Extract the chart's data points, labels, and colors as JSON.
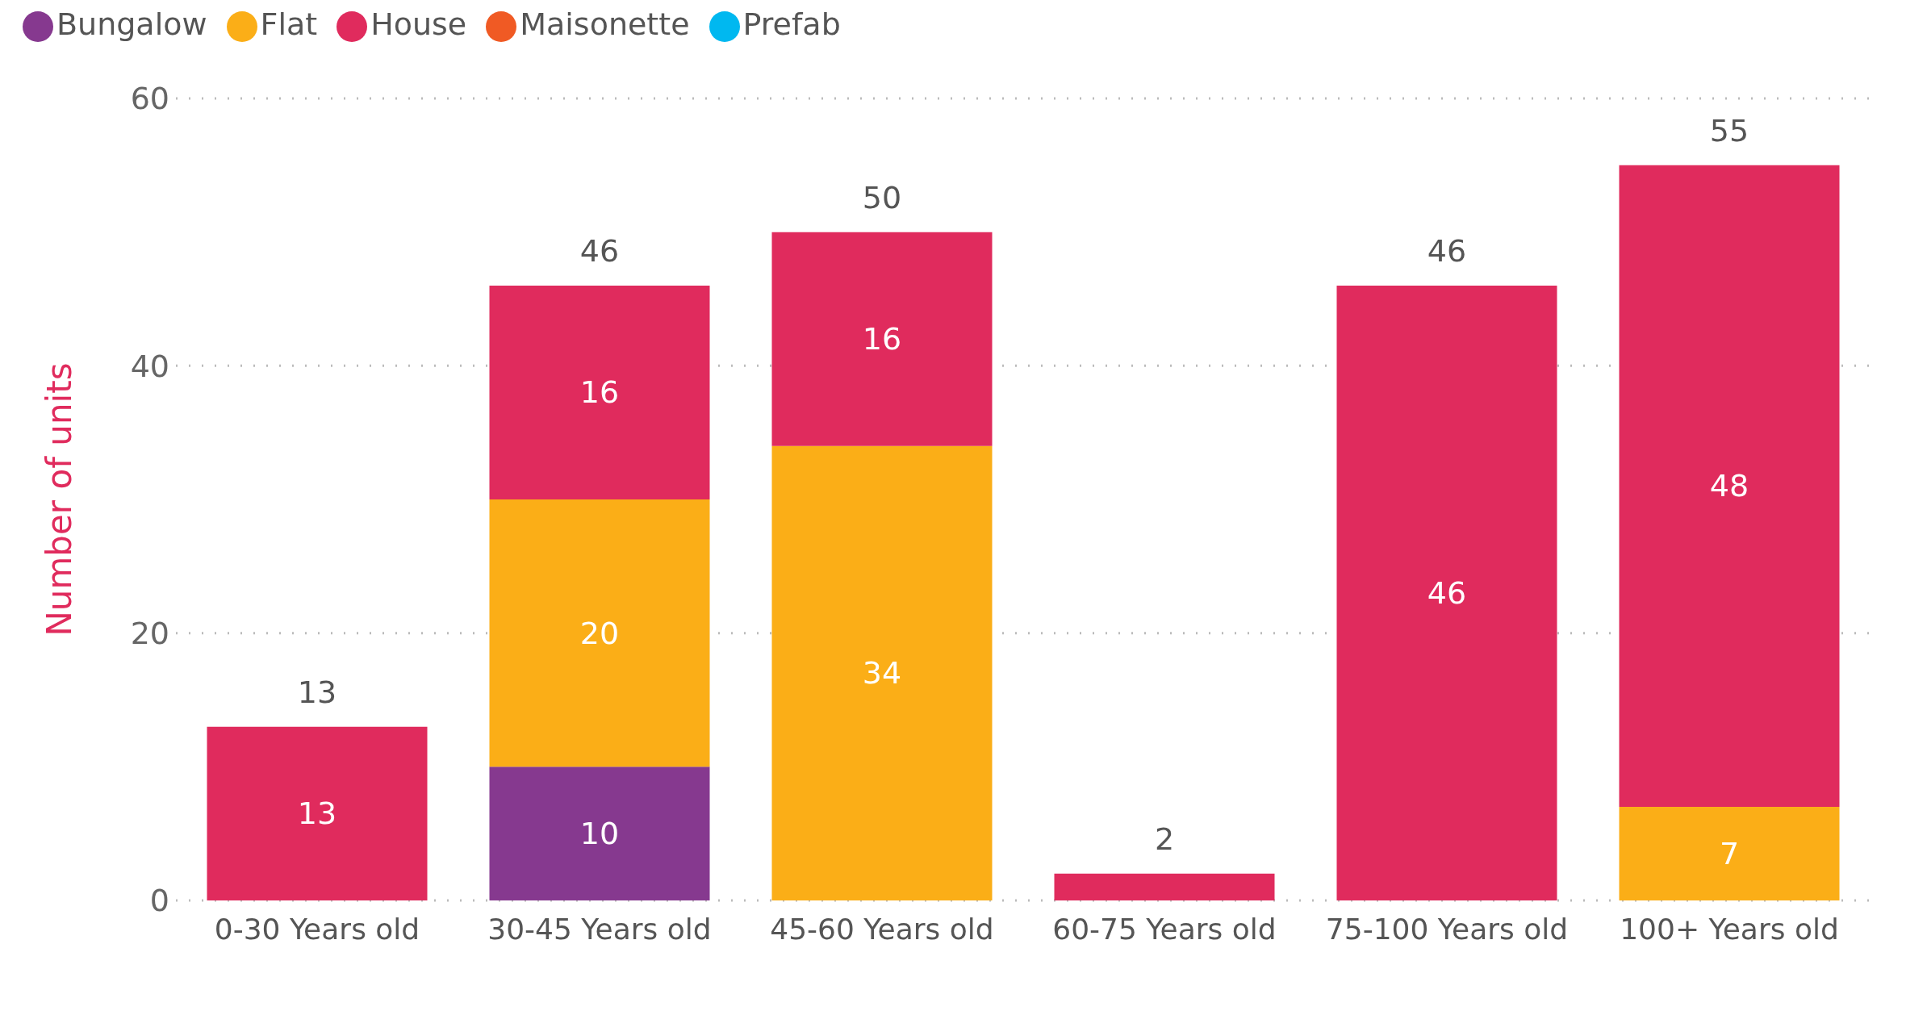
{
  "chart_data": {
    "type": "bar",
    "stacked": true,
    "ylabel": "Number of units",
    "categories": [
      "0-30 Years old",
      "30-45 Years old",
      "45-60 Years old",
      "60-75 Years old",
      "75-100 Years old",
      "100+ Years old"
    ],
    "series": [
      {
        "name": "Bungalow",
        "color": "#86398f",
        "values": [
          null,
          10,
          null,
          null,
          null,
          null
        ],
        "value_labels": [
          null,
          "10",
          null,
          null,
          null,
          null
        ]
      },
      {
        "name": "Flat",
        "color": "#fbae17",
        "values": [
          null,
          20,
          34,
          null,
          null,
          7
        ],
        "value_labels": [
          null,
          "20",
          "34",
          null,
          null,
          "7"
        ]
      },
      {
        "name": "House",
        "color": "#e02b5d",
        "values": [
          13,
          16,
          16,
          2,
          46,
          48
        ],
        "value_labels": [
          "13",
          "16",
          "16",
          null,
          "46",
          "48"
        ]
      },
      {
        "name": "Maisonette",
        "color": "#f05a24",
        "values": [
          null,
          null,
          null,
          null,
          null,
          null
        ]
      },
      {
        "name": "Prefab",
        "color": "#00b8f0",
        "values": [
          null,
          null,
          null,
          null,
          null,
          null
        ]
      }
    ],
    "totals": [
      "13",
      "46",
      "50",
      "2",
      "46",
      "55"
    ],
    "ylim": [
      0,
      60
    ],
    "yticks": [
      0,
      20,
      40,
      60
    ],
    "grid": "y",
    "legend": "top left"
  }
}
